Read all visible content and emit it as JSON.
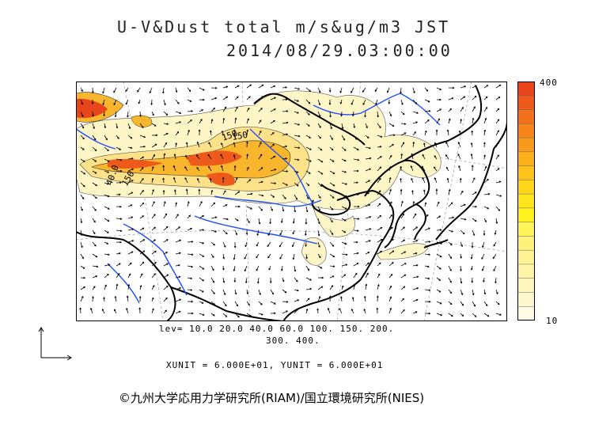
{
  "header": {
    "title_line1": "U-V&Dust total m/s&ug/m3 JST",
    "title_line2": "2014/08/29.03:00:00"
  },
  "colorbar": {
    "max_label": "400",
    "min_label": "10",
    "colors": [
      "#e8451c",
      "#ee5a1c",
      "#f2711c",
      "#f6861c",
      "#f89b1c",
      "#fbb01c",
      "#fdc21c",
      "#ffd61c",
      "#ffe61c",
      "#fff21c",
      "#fff45a",
      "#fff27a",
      "#fff393",
      "#fff4a8",
      "#fff6bc",
      "#fff8cf",
      "#fffbe4"
    ]
  },
  "contour_levels": {
    "line1": "lev= 10.0 20.0 40.0 60.0 100. 150. 200.",
    "line2": "300. 400."
  },
  "units_line": "XUNIT = 6.000E+01, YUNIT = 6.000E+01",
  "map_labels": [
    "150",
    "150",
    "40.0",
    "150"
  ],
  "copyright": "©九州大学応用力学研究所(RIAM)/国立環境研究所(NIES)",
  "palette": {
    "coast": "#000000",
    "river": "#1f4fff",
    "grid": "#9a9a9a",
    "arrow": "#000000",
    "dust_low": "#fff6c8",
    "dust_mid": "#fde28a",
    "dust_high": "#f7b62c",
    "dust_max": "#e8451c"
  }
}
